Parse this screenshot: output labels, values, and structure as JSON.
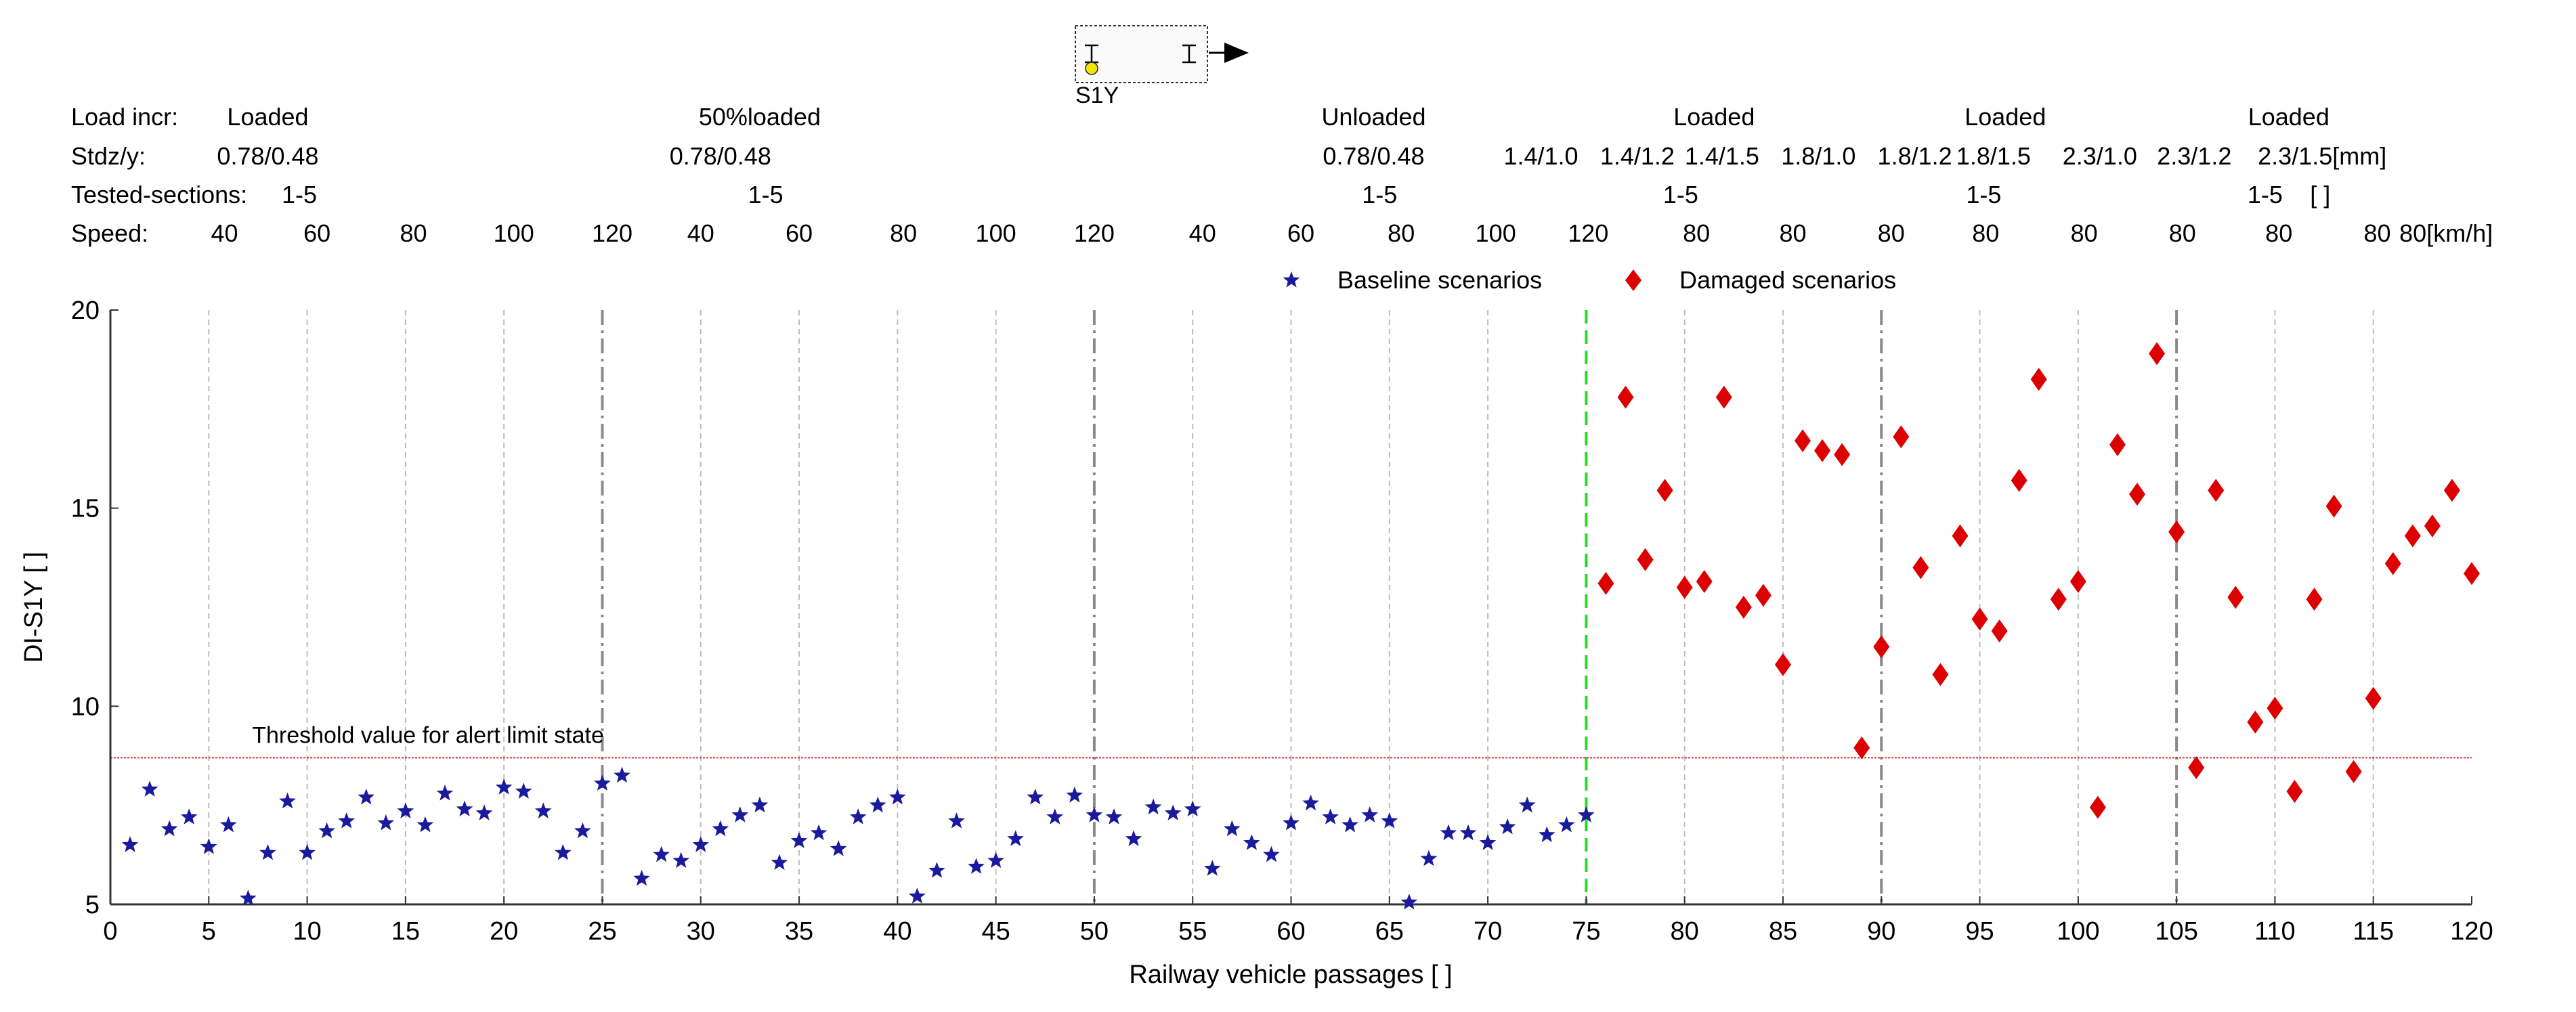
{
  "chart_data": {
    "type": "scatter",
    "sensor_label": "S1Y",
    "title": "",
    "xlabel": "Railway vehicle passages [  ]",
    "ylabel": "DI-S1Y [ ]",
    "xlim": [
      0,
      120
    ],
    "ylim": [
      5,
      20
    ],
    "x_ticks": [
      0,
      5,
      10,
      15,
      20,
      25,
      30,
      35,
      40,
      45,
      50,
      55,
      60,
      65,
      70,
      75,
      80,
      85,
      90,
      95,
      100,
      105,
      110,
      115,
      120
    ],
    "y_ticks": [
      5,
      10,
      15,
      20
    ],
    "x_gridlines": [
      5,
      10,
      15,
      20,
      30,
      35,
      40,
      45,
      55,
      60,
      65,
      70,
      80,
      85,
      95,
      100,
      110,
      115
    ],
    "group_separators": [
      25,
      50,
      90,
      105
    ],
    "damage_onset": 75,
    "threshold": {
      "value": 8.7,
      "label": "Threshold value for alert limit state",
      "color": "#cc3333"
    },
    "legend": {
      "position": "top-center",
      "entries": [
        {
          "name": "Baseline scenarios",
          "marker": "star",
          "color": "#1a1a9c"
        },
        {
          "name": "Damaged scenarios",
          "marker": "diamond",
          "color": "#dd0000"
        }
      ]
    },
    "header": {
      "rows": [
        {
          "label": "Load incr:",
          "cells": [
            {
              "text": "Loaded",
              "x": 8
            },
            {
              "text": "50%loaded",
              "x": 33
            },
            {
              "text": "Unloaded",
              "x": 64.2
            },
            {
              "text": "Loaded",
              "x": 81.5
            },
            {
              "text": "Loaded",
              "x": 96.3
            },
            {
              "text": "Loaded",
              "x": 110.7
            }
          ]
        },
        {
          "label": "Stdz/y:",
          "cells": [
            {
              "text": "0.78/0.48",
              "x": 8
            },
            {
              "text": "0.78/0.48",
              "x": 31
            },
            {
              "text": "0.78/0.48",
              "x": 64.2
            },
            {
              "text": "1.4/1.0",
              "x": 72.7
            },
            {
              "text": "1.4/1.2",
              "x": 77.6
            },
            {
              "text": "1.4/1.5",
              "x": 81.9
            },
            {
              "text": "1.8/1.0",
              "x": 86.8
            },
            {
              "text": "1.8/1.2",
              "x": 91.7
            },
            {
              "text": "1.8/1.5",
              "x": 95.7
            },
            {
              "text": "2.3/1.0",
              "x": 101.1
            },
            {
              "text": "2.3/1.2",
              "x": 105.9
            },
            {
              "text": "2.3/1.5[mm]",
              "x": 112.4
            }
          ]
        },
        {
          "label": "Tested-sections:",
          "cells": [
            {
              "text": "1-5",
              "x": 9.6
            },
            {
              "text": "1-5",
              "x": 33.3
            },
            {
              "text": "1-5",
              "x": 64.5
            },
            {
              "text": "1-5",
              "x": 79.8
            },
            {
              "text": "1-5",
              "x": 95.2
            },
            {
              "text": "1-5",
              "x": 109.5
            },
            {
              "text": "[ ]",
              "x": 112.3
            }
          ]
        },
        {
          "label": "Speed:",
          "cells": [
            {
              "text": "40",
              "x": 5.8
            },
            {
              "text": "60",
              "x": 10.5
            },
            {
              "text": "80",
              "x": 15.4
            },
            {
              "text": "100",
              "x": 20.5
            },
            {
              "text": "120",
              "x": 25.5
            },
            {
              "text": "40",
              "x": 30
            },
            {
              "text": "60",
              "x": 35
            },
            {
              "text": "80",
              "x": 40.3
            },
            {
              "text": "100",
              "x": 45
            },
            {
              "text": "120",
              "x": 50
            },
            {
              "text": "40",
              "x": 55.5
            },
            {
              "text": "60",
              "x": 60.5
            },
            {
              "text": "80",
              "x": 65.6
            },
            {
              "text": "100",
              "x": 70.4
            },
            {
              "text": "120",
              "x": 75.1
            },
            {
              "text": "80",
              "x": 80.6
            },
            {
              "text": "80",
              "x": 85.5
            },
            {
              "text": "80",
              "x": 90.5
            },
            {
              "text": "80",
              "x": 95.3
            },
            {
              "text": "80",
              "x": 100.3
            },
            {
              "text": "80",
              "x": 105.3
            },
            {
              "text": "80",
              "x": 110.2
            },
            {
              "text": "80",
              "x": 115.2
            },
            {
              "text": "80[km/h]",
              "x": 118.7
            }
          ]
        }
      ]
    },
    "series": [
      {
        "name": "Baseline scenarios",
        "marker": "star",
        "color": "#1a1a9c",
        "x": [
          1,
          2,
          3,
          4,
          5,
          6,
          7,
          8,
          9,
          10,
          11,
          12,
          13,
          14,
          15,
          16,
          17,
          18,
          19,
          20,
          21,
          22,
          23,
          24,
          25,
          26,
          27,
          28,
          29,
          30,
          31,
          32,
          33,
          34,
          35,
          36,
          37,
          38,
          39,
          40,
          41,
          42,
          43,
          44,
          45,
          46,
          47,
          48,
          49,
          50,
          51,
          52,
          53,
          54,
          55,
          56,
          57,
          58,
          59,
          60,
          61,
          62,
          63,
          64,
          65,
          66,
          67,
          68,
          69,
          70,
          71,
          72,
          73,
          74,
          75
        ],
        "y": [
          6.5,
          7.9,
          6.9,
          7.2,
          6.45,
          7.0,
          5.15,
          6.3,
          7.6,
          6.3,
          6.85,
          7.1,
          7.7,
          7.05,
          7.35,
          7.0,
          7.8,
          7.4,
          7.3,
          7.95,
          7.85,
          7.35,
          6.3,
          6.85,
          8.05,
          8.25,
          5.65,
          6.25,
          6.1,
          6.5,
          6.9,
          7.25,
          7.5,
          6.05,
          6.6,
          6.8,
          6.4,
          7.2,
          7.5,
          7.7,
          5.2,
          5.85,
          7.1,
          5.95,
          6.1,
          6.65,
          7.7,
          7.2,
          7.75,
          7.25,
          7.2,
          6.65,
          7.45,
          7.3,
          7.4,
          5.9,
          6.9,
          6.55,
          6.25,
          7.05,
          7.55,
          7.2,
          7.0,
          7.25,
          7.1,
          5.05,
          6.15,
          6.8,
          6.8,
          6.55,
          6.95,
          7.5,
          6.75,
          7.0,
          7.25
        ]
      },
      {
        "name": "Damaged scenarios",
        "marker": "diamond",
        "color": "#dd0000",
        "x": [
          76,
          77,
          78,
          79,
          80,
          81,
          82,
          83,
          84,
          85,
          86,
          87,
          88,
          89,
          90,
          91,
          92,
          93,
          94,
          95,
          96,
          97,
          98,
          99,
          100,
          101,
          102,
          103,
          104,
          105,
          106,
          107,
          108,
          109,
          110,
          111,
          112,
          113,
          114,
          115,
          116,
          117,
          118,
          119,
          120
        ],
        "y": [
          13.1,
          17.8,
          13.7,
          15.45,
          13.0,
          13.15,
          17.8,
          12.5,
          12.8,
          11.05,
          16.7,
          16.45,
          16.35,
          8.95,
          11.5,
          16.8,
          13.5,
          10.8,
          14.3,
          12.2,
          11.9,
          15.7,
          18.25,
          12.7,
          13.15,
          7.45,
          16.6,
          15.35,
          18.9,
          14.4,
          8.45,
          15.45,
          12.75,
          9.6,
          9.95,
          7.85,
          12.7,
          15.05,
          8.35,
          10.2,
          13.6,
          14.3,
          14.55,
          15.45,
          13.35
        ]
      }
    ]
  }
}
